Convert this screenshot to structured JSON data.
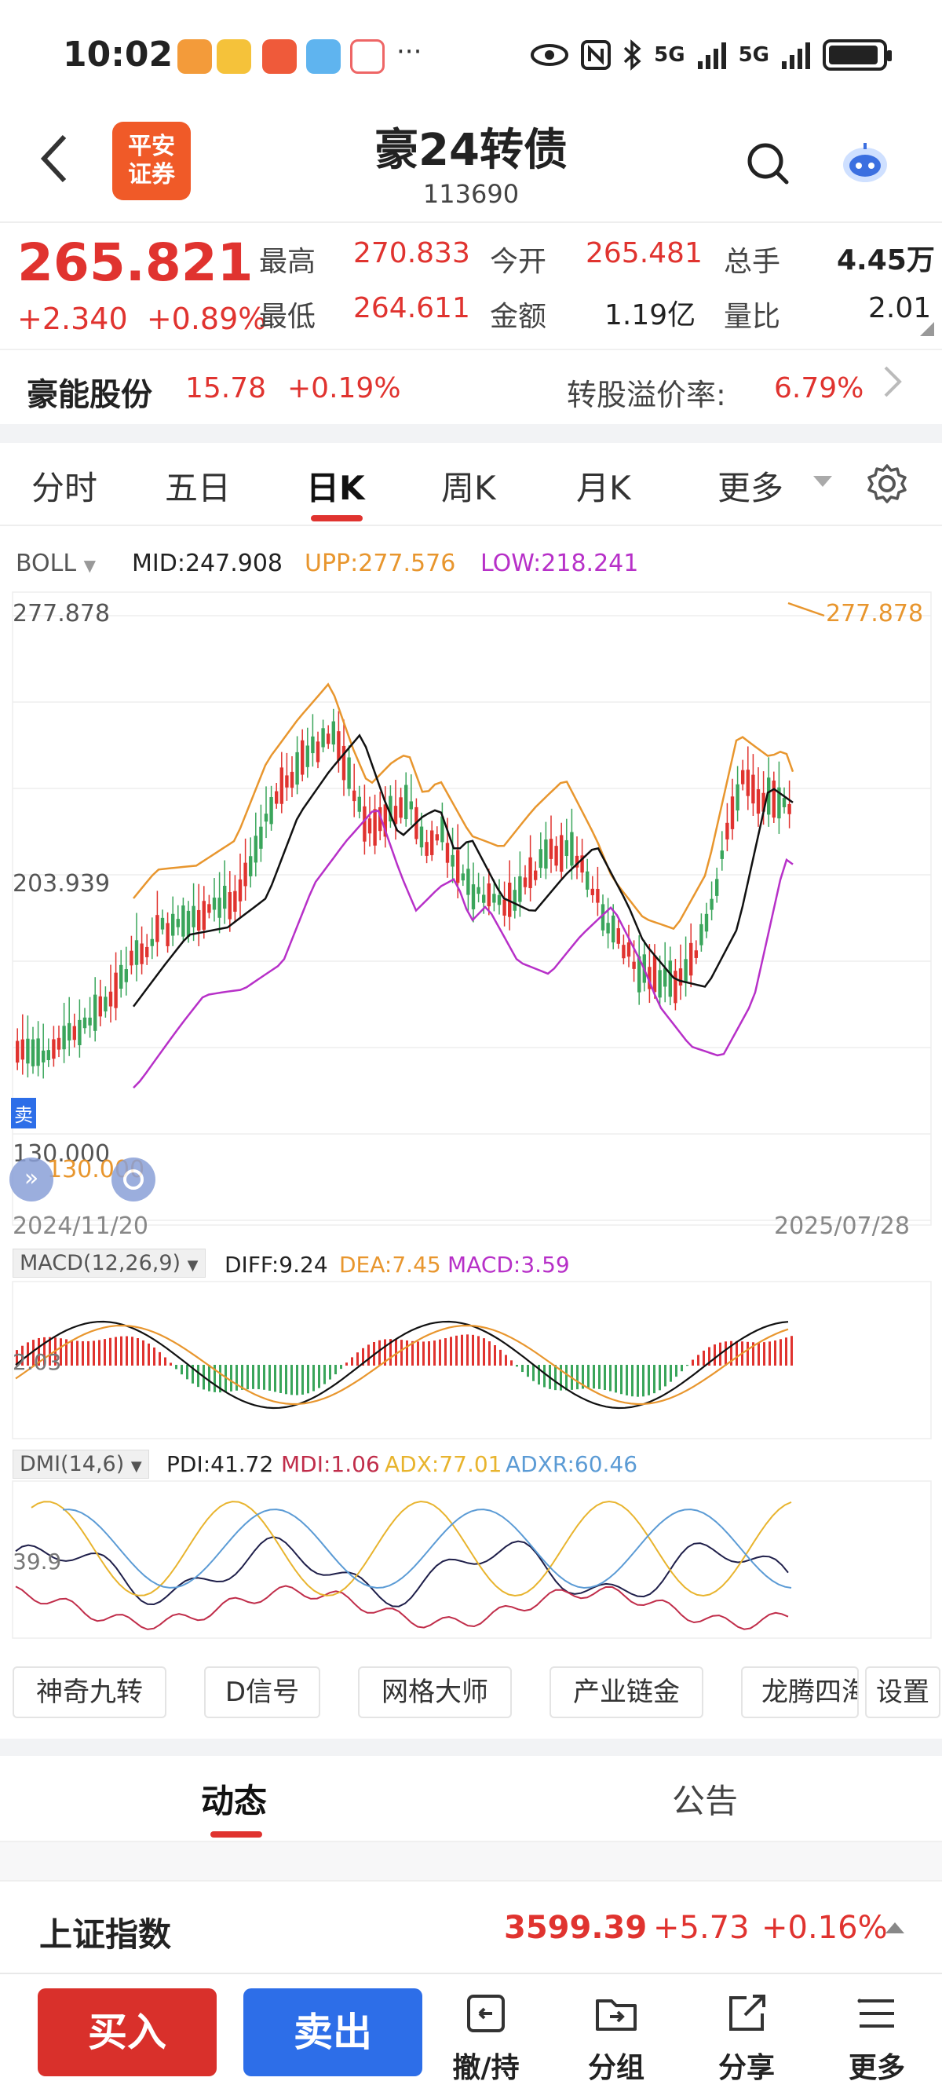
{
  "status_bar": {
    "time": "10:02",
    "dots": "···",
    "signal1": "5G",
    "signal2": "5G",
    "icons": [
      "eye-icon",
      "nfc-icon",
      "bluetooth-icon",
      "signal-icon",
      "battery-icon"
    ]
  },
  "header": {
    "logo_text_1": "平安",
    "logo_text_2": "证券",
    "title": "豪24转债",
    "code": "113690"
  },
  "quote": {
    "price": "265.821",
    "change": "+2.340",
    "change_pct": "+0.89%",
    "high_label": "最高",
    "high": "270.833",
    "open_label": "今开",
    "open": "265.481",
    "volume_label": "总手",
    "volume": "4.45万",
    "low_label": "最低",
    "low": "264.611",
    "amount_label": "金额",
    "amount": "1.19亿",
    "ratio_label": "量比",
    "ratio": "2.01"
  },
  "stock": {
    "name": "豪能股份",
    "price": "15.78",
    "change_pct": "+0.19%",
    "premium_label": "转股溢价率:",
    "premium": "6.79%"
  },
  "tabs": {
    "items": [
      "分时",
      "五日",
      "日K",
      "周K",
      "月K",
      "更多"
    ],
    "active": "日K"
  },
  "boll": {
    "label": "BOLL",
    "mid": "MID:247.908",
    "upp": "UPP:277.576",
    "low": "LOW:218.241",
    "y_top": "277.878",
    "y_mid": "203.939",
    "y_bottom": "130.000",
    "max_marker": "277.878",
    "start_date": "2024/11/20",
    "end_date": "2025/07/28",
    "side_tag": "卖"
  },
  "macd": {
    "label": "MACD(12,26,9)",
    "diff": "DIFF:9.24",
    "dea": "DEA:7.45",
    "macd": "MACD:3.59",
    "y_label": "2.03"
  },
  "dmi": {
    "label": "DMI(14,6)",
    "pdi": "PDI:41.72",
    "mdi": "MDI:1.06",
    "adx": "ADX:77.01",
    "adxr": "ADXR:60.46",
    "y_label": "39.9"
  },
  "colors": {
    "up": "#e0332f",
    "down": "#3aa55b",
    "orange": "#e8962e",
    "purple": "#b730c8",
    "blue": "#5b9bd5",
    "navy": "#1f1f4a",
    "buy": "#d9302b",
    "sell": "#2d6ee8"
  },
  "func_buttons": [
    "神奇九转",
    "D信号",
    "网格大师",
    "产业链金",
    "龙腾四海",
    "设置"
  ],
  "news_tabs": [
    "动态",
    "公告"
  ],
  "index": {
    "name": "上证指数",
    "value": "3599.39",
    "change": "+5.73",
    "change_pct": "+0.16%"
  },
  "bottom": {
    "buy": "买入",
    "sell": "卖出",
    "items": [
      "撤/持",
      "分组",
      "分享",
      "更多"
    ]
  }
}
